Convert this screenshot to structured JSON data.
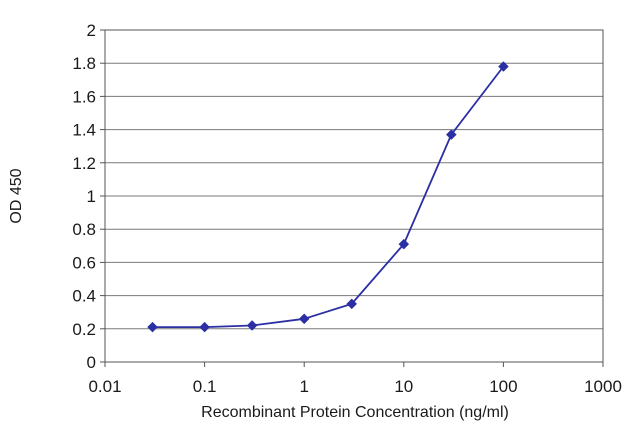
{
  "chart_data": {
    "type": "line",
    "title": "",
    "xlabel": "Recombinant Protein Concentration (ng/ml)",
    "ylabel": "OD 450",
    "x_scale": "log",
    "xlim": [
      0.01,
      1000
    ],
    "ylim": [
      0,
      2
    ],
    "x_ticks": [
      0.01,
      0.1,
      1,
      10,
      100,
      1000
    ],
    "x_tick_labels": [
      "0.01",
      "0.1",
      "1",
      "10",
      "100",
      "1000"
    ],
    "y_ticks": [
      0,
      0.2,
      0.4,
      0.6,
      0.8,
      1,
      1.2,
      1.4,
      1.6,
      1.8,
      2
    ],
    "y_tick_labels": [
      "0",
      "0.2",
      "0.4",
      "0.6",
      "0.8",
      "1",
      "1.2",
      "1.4",
      "1.6",
      "1.8",
      "2"
    ],
    "grid": "horizontal",
    "legend": "none",
    "series": [
      {
        "x": [
          0.03,
          0.1,
          0.3,
          1,
          3,
          10,
          30,
          100
        ],
        "y": [
          0.21,
          0.21,
          0.22,
          0.26,
          0.35,
          0.71,
          1.37,
          1.78
        ],
        "color": "#2b2fa3",
        "marker": "diamond"
      }
    ],
    "plot_background": "#ffffff",
    "grid_color": "#7a7a7a",
    "axis_color": "#555555"
  }
}
